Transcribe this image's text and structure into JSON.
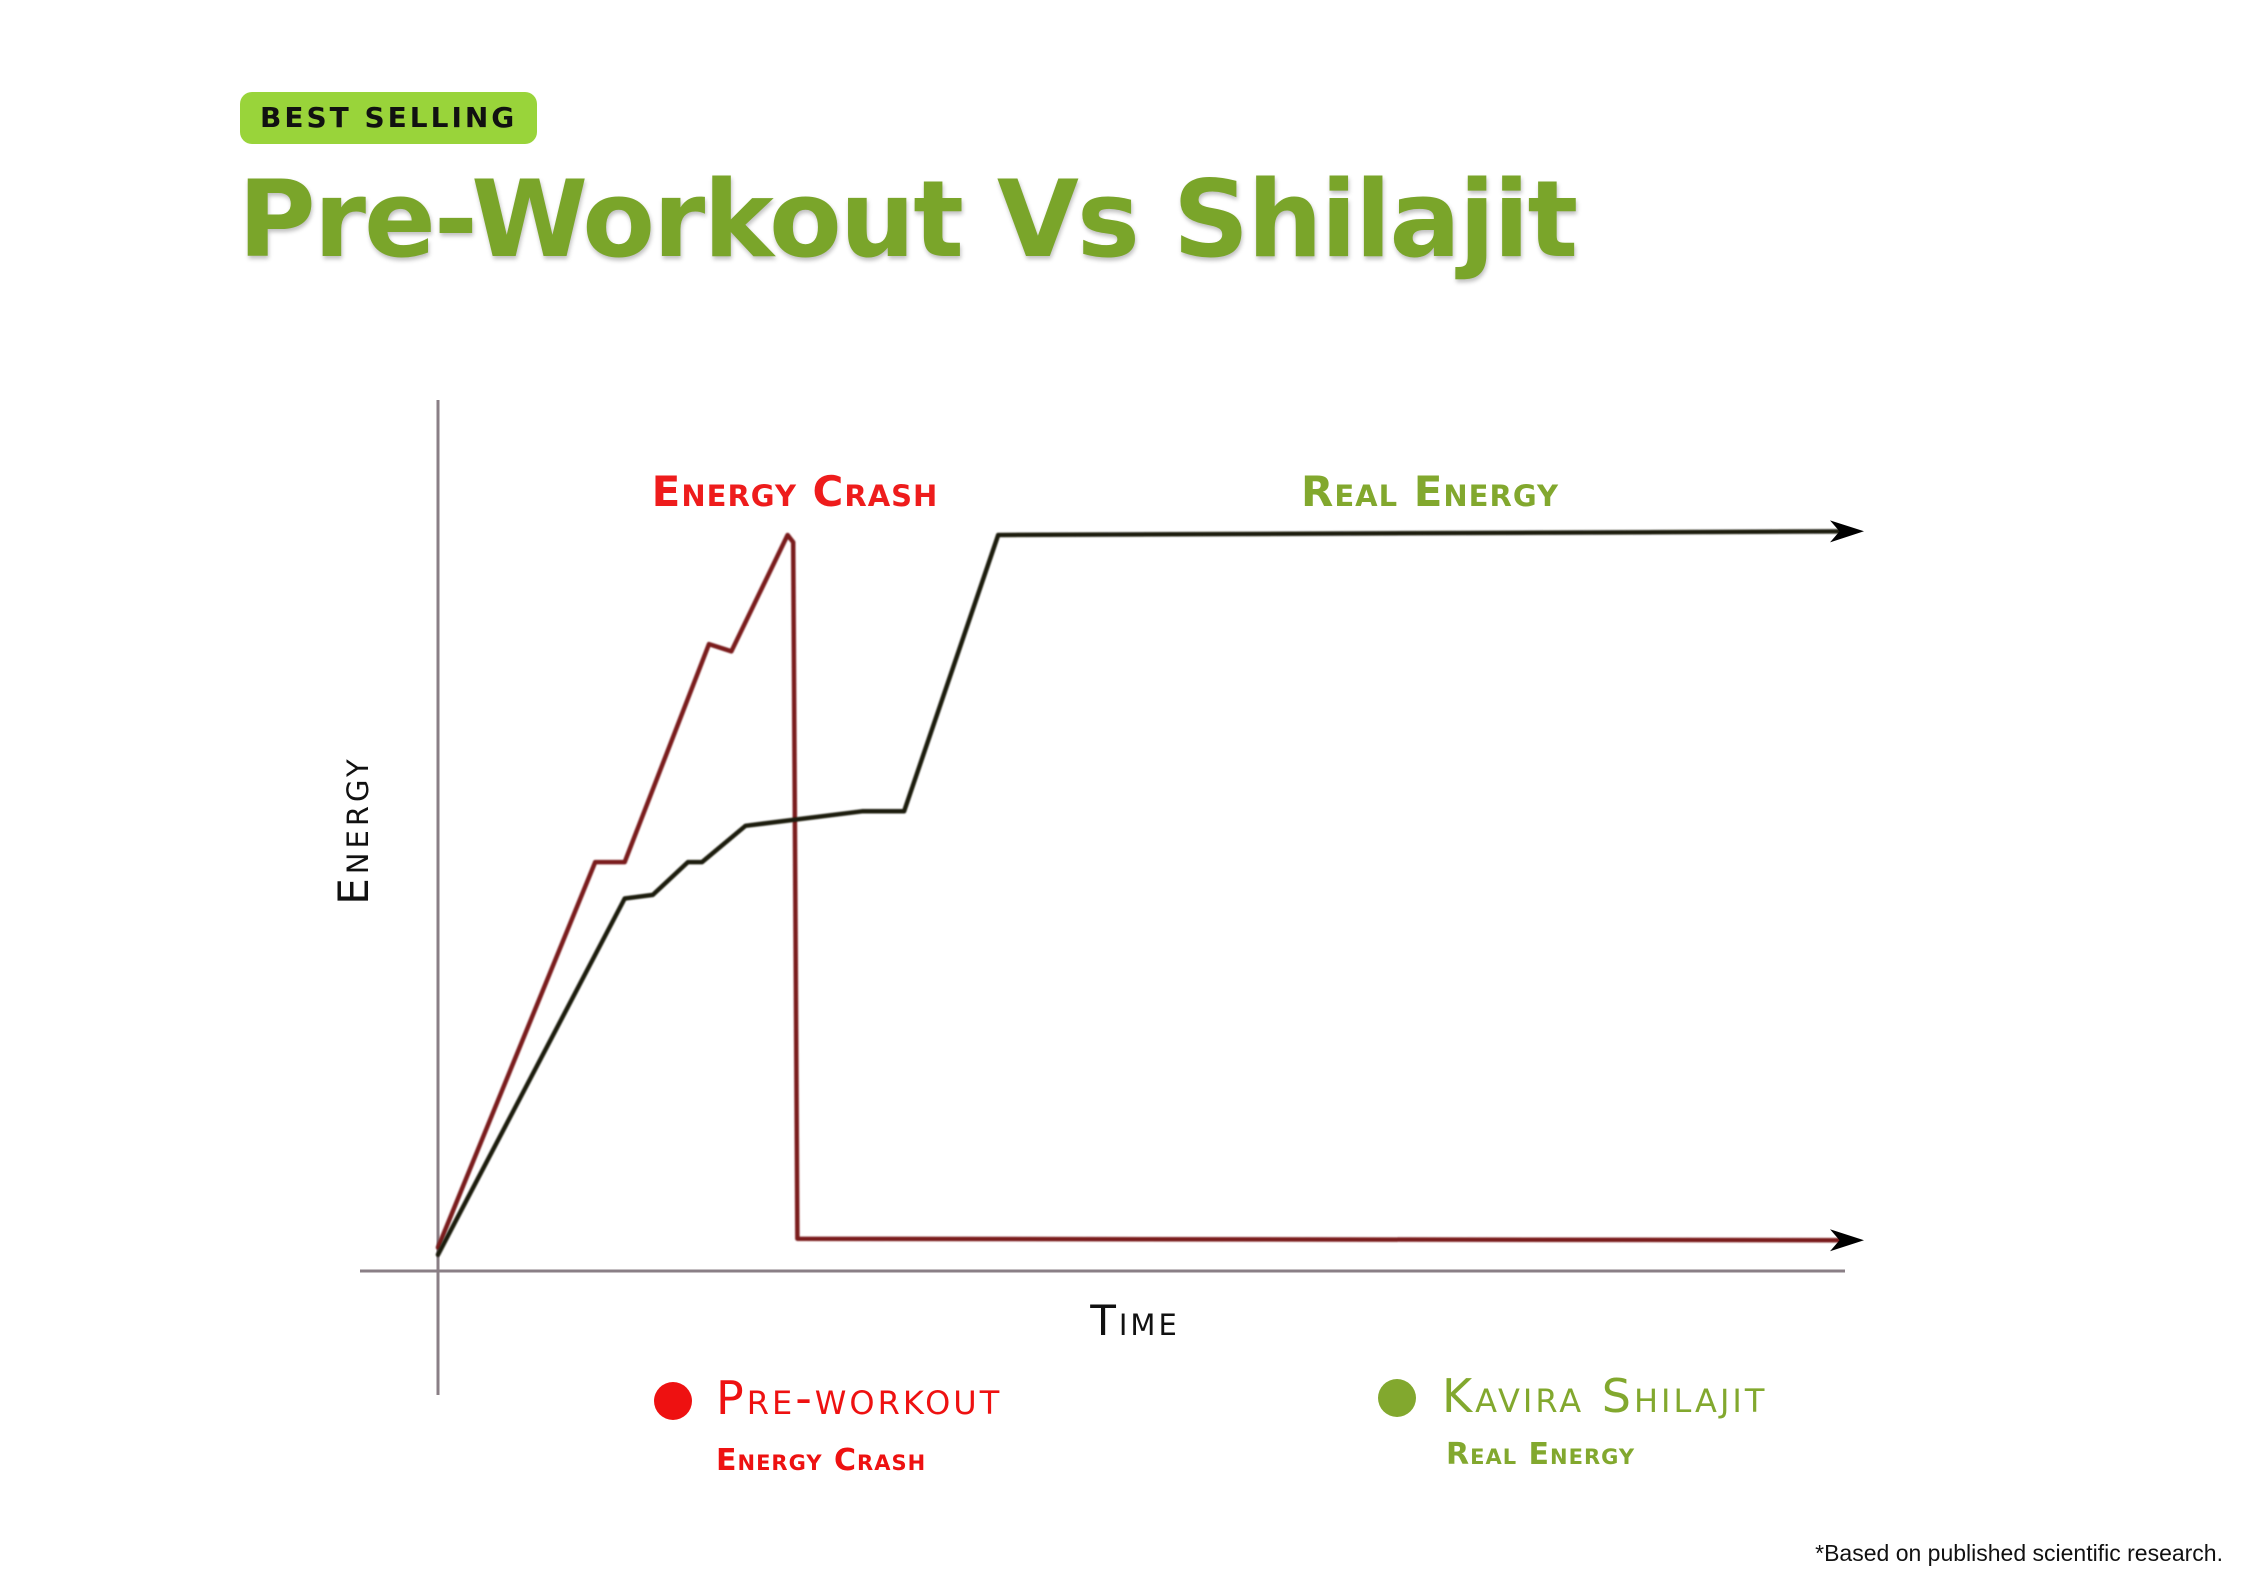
{
  "badge": "BEST SELLING",
  "title": "Pre-Workout Vs Shilajit",
  "footnote": "*Based on published scientific research.",
  "colors": {
    "badge_bg": "#99d43a",
    "title_green": "#7aa52a",
    "crash_red": "#ee1c1c",
    "preworkout_line": "#7a1a1f",
    "shilajit_line": "#1e1e10",
    "legend_red": "#ee1111",
    "legend_green": "#82a82e",
    "axis": "#8a7f86"
  },
  "chart_data": {
    "type": "line",
    "title": "Pre-Workout Vs Shilajit",
    "xlabel": "Time",
    "ylabel": "Energy",
    "xlim": [
      0,
      100
    ],
    "ylim": [
      0,
      100
    ],
    "grid": false,
    "axis_ticks": "none",
    "series": [
      {
        "name": "Pre-workout",
        "sublabel": "Energy Crash",
        "annotation": "Energy Crash",
        "color": "#7a1a1f",
        "legend_color": "#ee1111",
        "arrow_end": true,
        "x": [
          0,
          11.2,
          13.3,
          19.3,
          20.9,
          24.9,
          25.3,
          25.6,
          100
        ],
        "y": [
          2,
          55,
          55,
          85,
          84,
          100,
          99,
          3.2,
          3
        ]
      },
      {
        "name": "Kavira Shilajit",
        "sublabel": "Real Energy",
        "annotation": "Real Energy",
        "color": "#1e1e10",
        "legend_color": "#82a82e",
        "arrow_end": true,
        "x": [
          0,
          13.3,
          15.3,
          17.8,
          18.8,
          21.9,
          30.2,
          33.2,
          39.9,
          100
        ],
        "y": [
          1,
          50,
          50.5,
          55,
          55,
          60,
          62,
          62,
          100,
          100.5
        ]
      }
    ]
  }
}
